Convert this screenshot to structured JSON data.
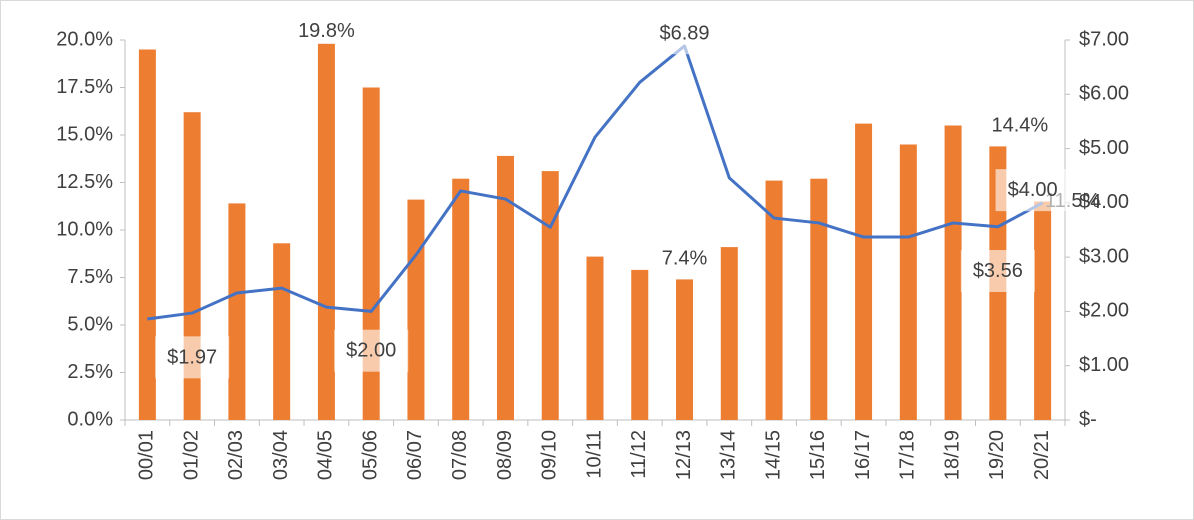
{
  "chart_data": {
    "type": "bar",
    "categories": [
      "00/01",
      "01/02",
      "02/03",
      "03/04",
      "04/05",
      "05/06",
      "06/07",
      "07/08",
      "08/09",
      "09/10",
      "10/11",
      "11/12",
      "12/13",
      "13/14",
      "14/15",
      "15/16",
      "16/17",
      "17/18",
      "18/19",
      "19/20",
      "20/21"
    ],
    "series": [
      {
        "type": "bar",
        "color": "#ed7d31",
        "axis": "y",
        "values": [
          19.5,
          16.2,
          11.4,
          9.3,
          19.8,
          17.5,
          11.6,
          12.7,
          13.9,
          13.1,
          8.6,
          7.9,
          7.4,
          9.1,
          12.6,
          12.7,
          15.6,
          14.5,
          15.5,
          14.4,
          11.5
        ],
        "value_labels": [
          null,
          null,
          null,
          null,
          "19.8%",
          null,
          null,
          null,
          null,
          null,
          null,
          null,
          "7.4%",
          null,
          null,
          null,
          null,
          null,
          null,
          "14.4%",
          "11.5%"
        ]
      },
      {
        "type": "line",
        "color": "#4472c4",
        "axis": "y2",
        "values": [
          1.86,
          1.97,
          2.34,
          2.43,
          2.08,
          2.0,
          3.04,
          4.22,
          4.07,
          3.55,
          5.21,
          6.22,
          6.89,
          4.46,
          3.72,
          3.63,
          3.37,
          3.37,
          3.63,
          3.56,
          4.0
        ],
        "value_labels": [
          null,
          "$1.97",
          null,
          null,
          null,
          "$2.00",
          null,
          null,
          null,
          null,
          null,
          null,
          "$6.89",
          null,
          null,
          null,
          null,
          null,
          null,
          "$3.56",
          "$4.00"
        ]
      }
    ],
    "ylim": [
      0,
      20
    ],
    "yticks": [
      {
        "value": 0,
        "label": "0.0%"
      },
      {
        "value": 2.5,
        "label": "2.5%"
      },
      {
        "value": 5,
        "label": "5.0%"
      },
      {
        "value": 7.5,
        "label": "7.5%"
      },
      {
        "value": 10,
        "label": "10.0%"
      },
      {
        "value": 12.5,
        "label": "12.5%"
      },
      {
        "value": 15,
        "label": "15.0%"
      },
      {
        "value": 17.5,
        "label": "17.5%"
      },
      {
        "value": 20,
        "label": "20.0%"
      }
    ],
    "y2lim": [
      0,
      7
    ],
    "y2ticks": [
      {
        "value": 0,
        "label": "$-"
      },
      {
        "value": 1,
        "label": "$1.00"
      },
      {
        "value": 2,
        "label": "$2.00"
      },
      {
        "value": 3,
        "label": "$3.00"
      },
      {
        "value": 4,
        "label": "$4.00"
      },
      {
        "value": 5,
        "label": "$5.00"
      },
      {
        "value": 6,
        "label": "$6.00"
      },
      {
        "value": 7,
        "label": "$7.00"
      }
    ],
    "grid": false
  }
}
